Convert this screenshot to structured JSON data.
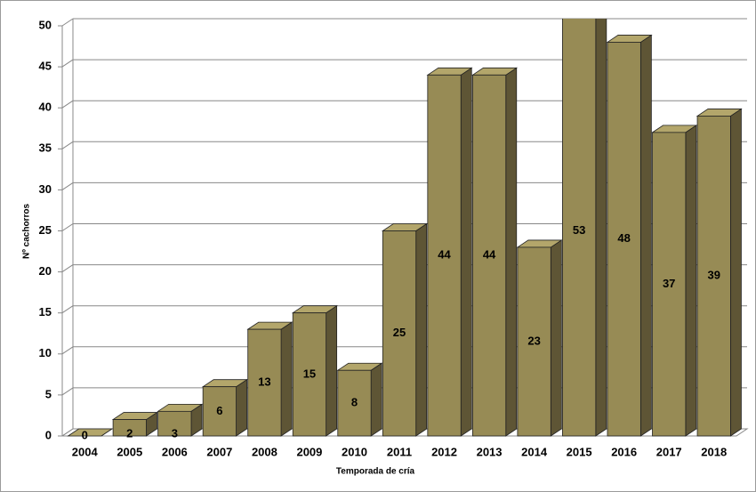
{
  "chart_data": {
    "type": "bar3d",
    "x_label": "Temporada de cría",
    "y_label": "Nº cachorros",
    "categories": [
      "2004",
      "2005",
      "2006",
      "2007",
      "2008",
      "2009",
      "2010",
      "2011",
      "2012",
      "2013",
      "2014",
      "2015",
      "2016",
      "2017",
      "2018"
    ],
    "values": [
      0,
      2,
      3,
      6,
      13,
      15,
      8,
      25,
      44,
      44,
      23,
      53,
      48,
      37,
      39
    ],
    "color": "#978b55",
    "ylim": [
      0,
      50
    ],
    "yticks": [
      0,
      5,
      10,
      15,
      20,
      25,
      30,
      35,
      40,
      45,
      50
    ],
    "grid": true
  }
}
